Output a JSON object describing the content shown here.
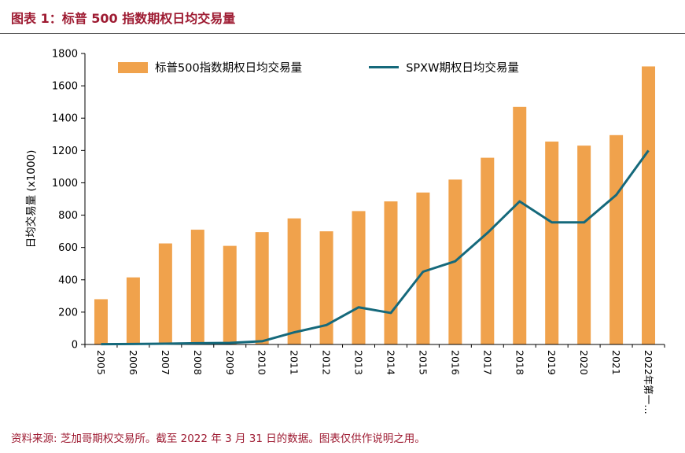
{
  "header": {
    "title": "图表 1：标普 500 指数期权日均交易量"
  },
  "legend": {
    "bars": "标普500指数期权日均交易量",
    "line": "SPXW期权日均交易量"
  },
  "footer": {
    "text": "资料来源: 芝加哥期权交易所。截至 2022 年 3 月 31 日的数据。图表仅供作说明之用。"
  },
  "colors": {
    "bar": "#F0A24C",
    "line": "#15697B",
    "accent": "#9E1B32",
    "axis": "#000000",
    "divider": "#4D4D4D"
  },
  "chart_data": {
    "type": "bar",
    "subtype": "bar+line combo",
    "title": "图表 1：标普 500 指数期权日均交易量",
    "xlabel": "",
    "ylabel": "日均交易量 (x1000)",
    "ylim": [
      0,
      1800
    ],
    "ytick_step": 200,
    "grid": false,
    "legend_position": "top-inside",
    "categories": [
      "2005",
      "2006",
      "2007",
      "2008",
      "2009",
      "2010",
      "2011",
      "2012",
      "2013",
      "2014",
      "2015",
      "2016",
      "2017",
      "2018",
      "2019",
      "2020",
      "2021",
      "2022年第一…"
    ],
    "series": [
      {
        "name": "标普500指数期权日均交易量",
        "type": "bar",
        "values": [
          280,
          415,
          625,
          710,
          610,
          695,
          780,
          700,
          825,
          885,
          940,
          1020,
          1155,
          1470,
          1255,
          1230,
          1295,
          1720
        ]
      },
      {
        "name": "SPXW期权日均交易量",
        "type": "line",
        "values": [
          2,
          3,
          5,
          8,
          10,
          20,
          75,
          120,
          230,
          195,
          450,
          515,
          690,
          885,
          755,
          755,
          925,
          1200
        ]
      }
    ]
  }
}
